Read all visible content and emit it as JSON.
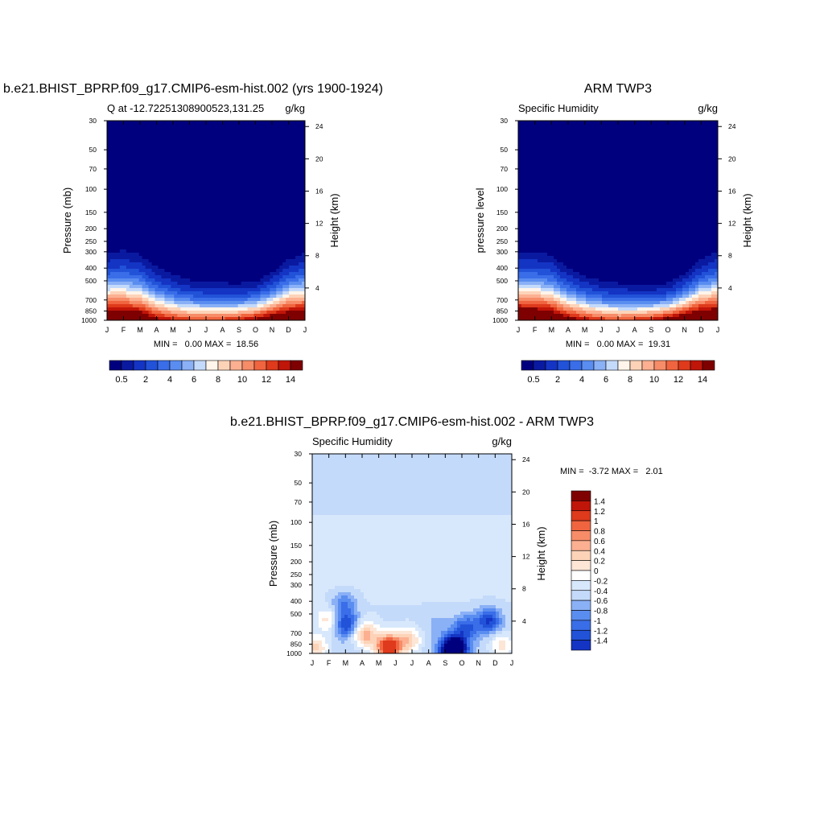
{
  "colors": {
    "q_levels": [
      "#00007f",
      "#0a1aa0",
      "#1434c4",
      "#2152d8",
      "#3a6de8",
      "#5a8df0",
      "#8ab0f6",
      "#c4dafa",
      "#fff5ea",
      "#fdd3b8",
      "#fcb091",
      "#f78c68",
      "#f0653f",
      "#de3a1b",
      "#c01509",
      "#7f0000"
    ],
    "diff_levels": [
      "#00007f",
      "#0a1aa0",
      "#1434c4",
      "#2152d8",
      "#3a6de8",
      "#5a8df0",
      "#8ab0f6",
      "#c4dafa",
      "#d8e8fc",
      "#ffffff",
      "#fde6d6",
      "#fdd3b8",
      "#fcb091",
      "#f78c68",
      "#f0653f",
      "#de3a1b",
      "#c01509",
      "#7f0000"
    ]
  },
  "chart_data": [
    {
      "id": "model",
      "type": "contour",
      "title": "b.e21.BHIST_BPRP.f09_g17.CMIP6-esm-hist.002 (yrs 1900-1924)",
      "left_string": "Q at -12.72251308900523,131.25",
      "right_string": "g/kg",
      "ylabel": "Pressure (mb)",
      "ylabel_right": "Height (km)",
      "x_ticks": [
        "J",
        "F",
        "M",
        "A",
        "M",
        "J",
        "J",
        "A",
        "S",
        "O",
        "N",
        "D",
        "J"
      ],
      "pressure_ticks": [
        "30",
        "50",
        "70",
        "100",
        "150",
        "200",
        "250",
        "300",
        "400",
        "500",
        "700",
        "850",
        "1000"
      ],
      "pressure_values": [
        30,
        50,
        70,
        100,
        150,
        200,
        250,
        300,
        400,
        500,
        700,
        850,
        1000
      ],
      "height_ticks": [
        "24",
        "20",
        "16",
        "12",
        "8",
        "4"
      ],
      "height_values": [
        24,
        20,
        16,
        12,
        8,
        4
      ],
      "stats": "MIN =   0.00 MAX =  18.56",
      "min": 0.0,
      "max": 18.56,
      "colorbar_labels": [
        "0.5",
        "2",
        "4",
        "6",
        "8",
        "10",
        "12",
        "14"
      ],
      "contour_levels": [
        0.5,
        1,
        2,
        3,
        4,
        5,
        6,
        7,
        8,
        9,
        10,
        11,
        12,
        13,
        14
      ],
      "moist_top_hPa": [
        305,
        295,
        315,
        390,
        450,
        495,
        510,
        520,
        525,
        510,
        430,
        345,
        305
      ],
      "surface_max": [
        18.5,
        18.5,
        17.5,
        15,
        13.5,
        12.8,
        12.5,
        12.8,
        13.5,
        15,
        17,
        18.3,
        18.5
      ]
    },
    {
      "id": "obs",
      "type": "contour",
      "title": "ARM TWP3",
      "left_string": "Specific Humidity",
      "right_string": "g/kg",
      "ylabel": "pressure level",
      "ylabel_right": "Height (km)",
      "x_ticks": [
        "J",
        "F",
        "M",
        "A",
        "M",
        "J",
        "J",
        "A",
        "S",
        "O",
        "N",
        "D",
        "J"
      ],
      "pressure_ticks": [
        "30",
        "50",
        "70",
        "100",
        "150",
        "200",
        "250",
        "300",
        "400",
        "500",
        "700",
        "850",
        "1000"
      ],
      "pressure_values": [
        30,
        50,
        70,
        100,
        150,
        200,
        250,
        300,
        400,
        500,
        700,
        850,
        1000
      ],
      "height_ticks": [
        "24",
        "20",
        "16",
        "12",
        "8",
        "4"
      ],
      "height_values": [
        24,
        20,
        16,
        12,
        8,
        4
      ],
      "stats": "MIN =   0.00 MAX =  19.31",
      "min": 0.0,
      "max": 19.31,
      "colorbar_labels": [
        "0.5",
        "2",
        "4",
        "6",
        "8",
        "10",
        "12",
        "14"
      ],
      "contour_levels": [
        0.5,
        1,
        2,
        3,
        4,
        5,
        6,
        7,
        8,
        9,
        10,
        11,
        12,
        13,
        14
      ],
      "moist_top_hPa": [
        300,
        300,
        320,
        400,
        460,
        500,
        520,
        540,
        545,
        520,
        440,
        340,
        300
      ],
      "surface_max": [
        19.3,
        19,
        18,
        15.5,
        14,
        13,
        12.5,
        13,
        14,
        15.5,
        17.5,
        19,
        19.3
      ]
    },
    {
      "id": "diff",
      "type": "contour",
      "title": "b.e21.BHIST_BPRP.f09_g17.CMIP6-esm-hist.002 - ARM TWP3",
      "left_string": "Specific Humidity",
      "right_string": "g/kg",
      "ylabel": "Pressure (mb)",
      "ylabel_right": "Height (km)",
      "x_ticks": [
        "J",
        "F",
        "M",
        "A",
        "M",
        "J",
        "J",
        "A",
        "S",
        "O",
        "N",
        "D",
        "J"
      ],
      "pressure_ticks": [
        "30",
        "50",
        "70",
        "100",
        "150",
        "200",
        "250",
        "300",
        "400",
        "500",
        "700",
        "850",
        "1000"
      ],
      "pressure_values": [
        30,
        50,
        70,
        100,
        150,
        200,
        250,
        300,
        400,
        500,
        700,
        850,
        1000
      ],
      "height_ticks": [
        "24",
        "20",
        "16",
        "12",
        "8",
        "4"
      ],
      "height_values": [
        24,
        20,
        16,
        12,
        8,
        4
      ],
      "stats": "MIN =  -3.72 MAX =   2.01",
      "min": -3.72,
      "max": 2.01,
      "colorbar_labels": [
        "1.4",
        "1.2",
        "1",
        "0.8",
        "0.6",
        "0.4",
        "0.2",
        "0",
        "-0.2",
        "-0.4",
        "-0.6",
        "-0.8",
        "-1",
        "-1.2",
        "-1.4"
      ],
      "contour_levels": [
        -1.4,
        -1.2,
        -1,
        -0.8,
        -0.6,
        -0.4,
        -0.2,
        0,
        0.2,
        0.4,
        0.6,
        0.8,
        1,
        1.2,
        1.4
      ],
      "upper_light_blue_below_hPa": 90,
      "features": [
        {
          "month": 2.0,
          "pressure": 600,
          "value": -1.0
        },
        {
          "month": 1.9,
          "pressure": 420,
          "value": -0.6
        },
        {
          "month": 1.0,
          "pressure": 560,
          "value": 0.6
        },
        {
          "month": 3.2,
          "pressure": 720,
          "value": 1.0
        },
        {
          "month": 4.6,
          "pressure": 900,
          "value": 2.0
        },
        {
          "month": 5.8,
          "pressure": 800,
          "value": 0.8
        },
        {
          "month": 7.5,
          "pressure": 600,
          "value": -0.2
        },
        {
          "month": 9.2,
          "pressure": 640,
          "value": -0.8
        },
        {
          "month": 10.6,
          "pressure": 560,
          "value": -1.0
        },
        {
          "month": 8.5,
          "pressure": 930,
          "value": -2.5
        },
        {
          "month": 11.4,
          "pressure": 880,
          "value": 0.6
        },
        {
          "month": 0.2,
          "pressure": 920,
          "value": 0.8
        }
      ]
    }
  ]
}
